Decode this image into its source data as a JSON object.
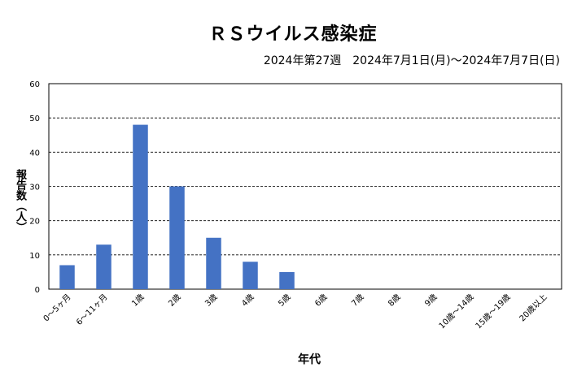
{
  "chart_data": {
    "type": "bar",
    "title": "ＲＳウイルス感染症",
    "subtitle": "2024年第27週　2024年7月1日(月)～2024年7月7日(日)",
    "xlabel": "年代",
    "ylabel": "報告数（人）",
    "categories": [
      "0～5ヶ月",
      "6～11ヶ月",
      "1歳",
      "2歳",
      "3歳",
      "4歳",
      "5歳",
      "6歳",
      "7歳",
      "8歳",
      "9歳",
      "10歳～14歳",
      "15歳～19歳",
      "20歳以上"
    ],
    "values": [
      7,
      13,
      48,
      30,
      15,
      8,
      5,
      0,
      0,
      0,
      0,
      0,
      0,
      0
    ],
    "ylim": [
      0,
      60
    ],
    "yticks": [
      0,
      10,
      20,
      30,
      40,
      50,
      60
    ],
    "grid": true,
    "legend": "none",
    "bar_color": "#4472C4"
  }
}
